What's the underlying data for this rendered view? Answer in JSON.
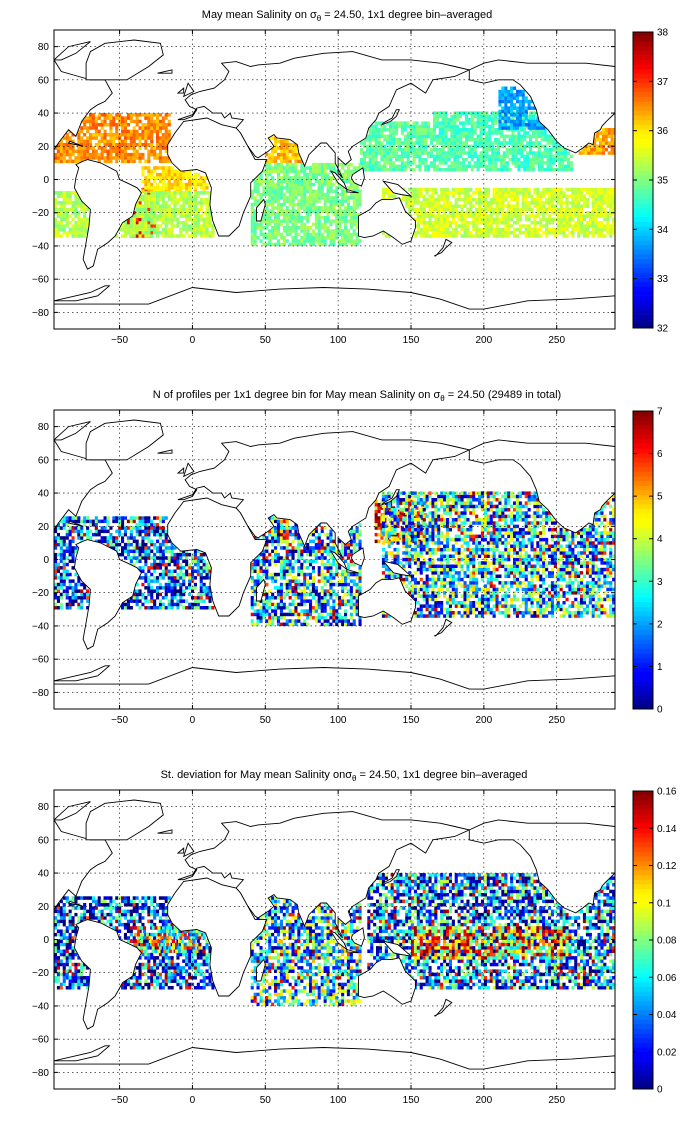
{
  "figure": {
    "panels": [
      {
        "title": {
          "pre": "May mean Salinity on ",
          "sigma": "σ",
          "theta": "θ",
          "post": " = 24.50, 1x1 degree bin–averaged"
        },
        "colorbar": {
          "ticks": [
            "32",
            "33",
            "34",
            "35",
            "36",
            "37",
            "38"
          ],
          "values": [
            32,
            33,
            34,
            35,
            36,
            37,
            38
          ]
        }
      },
      {
        "title": {
          "pre": "N of profiles per 1x1 degree bin for May mean Salinity on ",
          "sigma": "σ",
          "theta": "θ",
          "post": " = 24.50 (29489 in total)"
        },
        "colorbar": {
          "ticks": [
            "0",
            "1",
            "2",
            "3",
            "4",
            "5",
            "6",
            "7"
          ],
          "values": [
            0,
            1,
            2,
            3,
            4,
            5,
            6,
            7
          ]
        }
      },
      {
        "title": {
          "pre": "St. deviation for May mean Salinity on",
          "sigma": "σ",
          "theta": "θ",
          "post": " = 24.50, 1x1 degree bin–averaged"
        },
        "colorbar": {
          "ticks": [
            "0",
            "0.02",
            "0.04",
            "0.06",
            "0.08",
            "0.1",
            "0.12",
            "0.14",
            "0.16"
          ],
          "values": [
            0,
            0.02,
            0.04,
            0.06,
            0.08,
            0.1,
            0.12,
            0.14,
            0.16
          ]
        }
      }
    ]
  },
  "chart_data": [
    {
      "type": "heatmap",
      "title": "May mean Salinity on σθ = 24.50, 1x1 degree bin–averaged",
      "xlim": [
        -95,
        290
      ],
      "ylim": [
        -90,
        90
      ],
      "xticks": [
        -50,
        0,
        50,
        100,
        150,
        200,
        250
      ],
      "yticks": [
        -80,
        -60,
        -40,
        -20,
        0,
        20,
        40,
        60,
        80
      ],
      "xtick_labels": [
        "−50",
        "0",
        "50",
        "100",
        "150",
        "200",
        "250"
      ],
      "ytick_labels": [
        "−80",
        "−60",
        "−40",
        "−20",
        "0",
        "20",
        "40",
        "60",
        "80"
      ],
      "grid": true,
      "colormap": "jet",
      "clim": [
        32,
        38
      ],
      "regions": [
        {
          "lon": [
            -95,
            -15
          ],
          "lat": [
            10,
            40
          ],
          "value": 36.5
        },
        {
          "lon": [
            -45,
            -25
          ],
          "lat": [
            -35,
            -5
          ],
          "value": 37.2
        },
        {
          "lon": [
            -35,
            10
          ],
          "lat": [
            -8,
            8
          ],
          "value": 36.0
        },
        {
          "lon": [
            -95,
            15
          ],
          "lat": [
            -35,
            -8
          ],
          "value": 35.3
        },
        {
          "lon": [
            50,
            75
          ],
          "lat": [
            10,
            25
          ],
          "value": 36.3
        },
        {
          "lon": [
            40,
            115
          ],
          "lat": [
            -40,
            10
          ],
          "value": 35.0
        },
        {
          "lon": [
            115,
            165
          ],
          "lat": [
            5,
            35
          ],
          "value": 34.8
        },
        {
          "lon": [
            130,
            290
          ],
          "lat": [
            -35,
            -5
          ],
          "value": 35.5
        },
        {
          "lon": [
            165,
            260
          ],
          "lat": [
            5,
            40
          ],
          "value": 34.7
        },
        {
          "lon": [
            210,
            255
          ],
          "lat": [
            30,
            55
          ],
          "value": 33.7
        },
        {
          "lon": [
            265,
            290
          ],
          "lat": [
            15,
            30
          ],
          "value": 36.4
        }
      ]
    },
    {
      "type": "heatmap",
      "title": "N of profiles per 1x1 degree bin for May mean Salinity on σθ = 24.50 (29489 in total)",
      "xlim": [
        -95,
        290
      ],
      "ylim": [
        -90,
        90
      ],
      "xticks": [
        -50,
        0,
        50,
        100,
        150,
        200,
        250
      ],
      "yticks": [
        -80,
        -60,
        -40,
        -20,
        0,
        20,
        40,
        60,
        80
      ],
      "xtick_labels": [
        "−50",
        "0",
        "50",
        "100",
        "150",
        "200",
        "250"
      ],
      "ytick_labels": [
        "−80",
        "−60",
        "−40",
        "−20",
        "0",
        "20",
        "40",
        "60",
        "80"
      ],
      "grid": true,
      "colormap": "jet",
      "clim": [
        0,
        7
      ],
      "total_profiles": 29489,
      "regions": [
        {
          "lon": [
            -95,
            15
          ],
          "lat": [
            -30,
            25
          ],
          "value": 1.5
        },
        {
          "lon": [
            40,
            115
          ],
          "lat": [
            -40,
            25
          ],
          "value": 2.2
        },
        {
          "lon": [
            60,
            65
          ],
          "lat": [
            10,
            25
          ],
          "value": 6.0
        },
        {
          "lon": [
            125,
            160
          ],
          "lat": [
            10,
            35
          ],
          "value": 5.5
        },
        {
          "lon": [
            130,
            290
          ],
          "lat": [
            -35,
            40
          ],
          "value": 2.5
        }
      ]
    },
    {
      "type": "heatmap",
      "title": "St. deviation for May mean Salinity on σθ = 24.50, 1x1 degree bin–averaged",
      "xlim": [
        -95,
        290
      ],
      "ylim": [
        -90,
        90
      ],
      "xticks": [
        -50,
        0,
        50,
        100,
        150,
        200,
        250
      ],
      "yticks": [
        -80,
        -60,
        -40,
        -20,
        0,
        20,
        40,
        60,
        80
      ],
      "xtick_labels": [
        "−50",
        "0",
        "50",
        "100",
        "150",
        "200",
        "250"
      ],
      "ytick_labels": [
        "−80",
        "−60",
        "−40",
        "−20",
        "0",
        "20",
        "40",
        "60",
        "80"
      ],
      "grid": true,
      "colormap": "jet",
      "clim": [
        0,
        0.16
      ],
      "regions": [
        {
          "lon": [
            -95,
            15
          ],
          "lat": [
            -30,
            25
          ],
          "value": 0.03
        },
        {
          "lon": [
            -40,
            5
          ],
          "lat": [
            -8,
            8
          ],
          "value": 0.09
        },
        {
          "lon": [
            40,
            115
          ],
          "lat": [
            -40,
            25
          ],
          "value": 0.06
        },
        {
          "lon": [
            120,
            290
          ],
          "lat": [
            -30,
            40
          ],
          "value": 0.04
        },
        {
          "lon": [
            150,
            260
          ],
          "lat": [
            -12,
            8
          ],
          "value": 0.11
        }
      ]
    }
  ]
}
